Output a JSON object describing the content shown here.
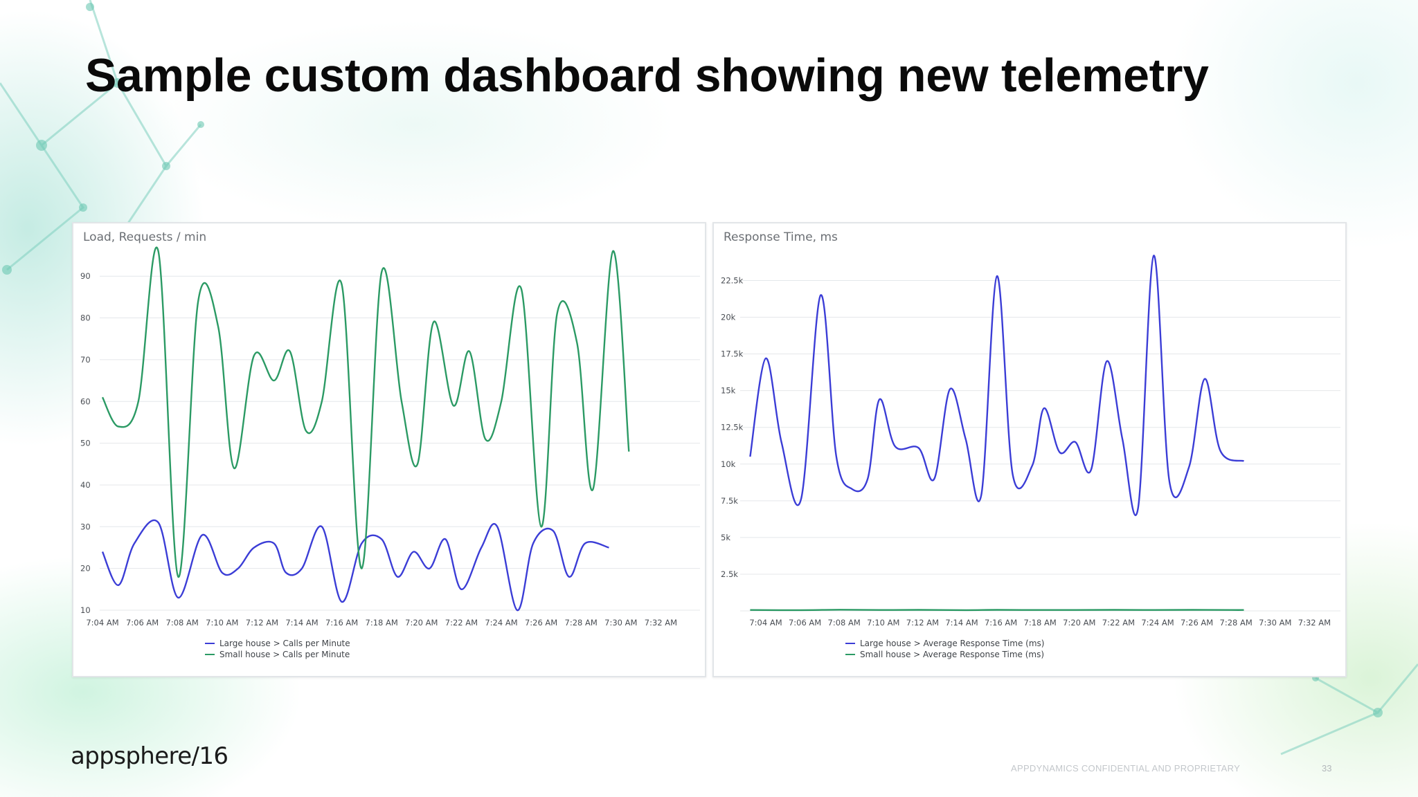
{
  "slide": {
    "title": "Sample custom dashboard showing new telemetry",
    "logo": "appsphere/16",
    "footer": "APPDYNAMICS CONFIDENTIAL AND PROPRIETARY",
    "page_number": "33"
  },
  "chart_data": [
    {
      "type": "line",
      "title": "Load, Requests / min",
      "x": [
        "7:04 AM",
        "7:06 AM",
        "7:08 AM",
        "7:10 AM",
        "7:12 AM",
        "7:14 AM",
        "7:16 AM",
        "7:18 AM",
        "7:20 AM",
        "7:22 AM",
        "7:24 AM",
        "7:26 AM",
        "7:28 AM",
        "7:30 AM",
        "7:32 AM"
      ],
      "y_ticks": [
        "10",
        "20",
        "30",
        "40",
        "50",
        "60",
        "70",
        "80",
        "90"
      ],
      "ylim": [
        10,
        96
      ],
      "grid": true,
      "legend_position": "bottom",
      "series": [
        {
          "name": "Large house > Calls per Minute",
          "color": "#3b3dd6",
          "points": [
            [
              0,
              24
            ],
            [
              0.4,
              16
            ],
            [
              0.8,
              26
            ],
            [
              1.4,
              31
            ],
            [
              1.9,
              13
            ],
            [
              2.5,
              28
            ],
            [
              3,
              19
            ],
            [
              3.4,
              20
            ],
            [
              3.8,
              25
            ],
            [
              4.3,
              26
            ],
            [
              4.6,
              19
            ],
            [
              5,
              20
            ],
            [
              5.5,
              30
            ],
            [
              6,
              12
            ],
            [
              6.5,
              26
            ],
            [
              7,
              27
            ],
            [
              7.4,
              18
            ],
            [
              7.8,
              24
            ],
            [
              8.2,
              20
            ],
            [
              8.6,
              27
            ],
            [
              9,
              15
            ],
            [
              9.5,
              25
            ],
            [
              9.9,
              30
            ],
            [
              10.4,
              10
            ],
            [
              10.8,
              26
            ],
            [
              11.3,
              29
            ],
            [
              11.7,
              18
            ],
            [
              12.1,
              26
            ],
            [
              12.7,
              25
            ]
          ]
        },
        {
          "name": "Small house > Calls per Minute",
          "color": "#2b9a64",
          "points": [
            [
              0,
              61
            ],
            [
              0.4,
              54
            ],
            [
              0.9,
              60
            ],
            [
              1.4,
              96
            ],
            [
              1.9,
              18
            ],
            [
              2.4,
              84
            ],
            [
              2.9,
              78
            ],
            [
              3.3,
              44
            ],
            [
              3.8,
              71
            ],
            [
              4.3,
              65
            ],
            [
              4.7,
              72
            ],
            [
              5.1,
              53
            ],
            [
              5.5,
              60
            ],
            [
              6,
              88
            ],
            [
              6.5,
              20
            ],
            [
              7,
              91
            ],
            [
              7.5,
              60
            ],
            [
              7.9,
              45
            ],
            [
              8.3,
              79
            ],
            [
              8.8,
              59
            ],
            [
              9.2,
              72
            ],
            [
              9.6,
              51
            ],
            [
              10,
              60
            ],
            [
              10.5,
              87
            ],
            [
              11,
              30
            ],
            [
              11.4,
              81
            ],
            [
              11.9,
              74
            ],
            [
              12.3,
              39
            ],
            [
              12.8,
              96
            ],
            [
              13.2,
              48
            ]
          ]
        }
      ]
    },
    {
      "type": "line",
      "title": "Response Time, ms",
      "x": [
        "7:04 AM",
        "7:06 AM",
        "7:08 AM",
        "7:10 AM",
        "7:12 AM",
        "7:14 AM",
        "7:16 AM",
        "7:18 AM",
        "7:20 AM",
        "7:22 AM",
        "7:24 AM",
        "7:26 AM",
        "7:28 AM",
        "7:30 AM",
        "7:32 AM"
      ],
      "y_ticks": [
        "2.5k",
        "5k",
        "7.5k",
        "10k",
        "12.5k",
        "15k",
        "17.5k",
        "20k",
        "22.5k"
      ],
      "ylim": [
        0,
        24500
      ],
      "grid": true,
      "legend_position": "bottom",
      "series": [
        {
          "name": "Large house > Average Response Time (ms)",
          "color": "#3b3dd6",
          "points": [
            [
              -0.4,
              10500
            ],
            [
              0,
              17200
            ],
            [
              0.4,
              11500
            ],
            [
              0.9,
              7600
            ],
            [
              1.4,
              21500
            ],
            [
              1.8,
              10500
            ],
            [
              2.2,
              8300
            ],
            [
              2.6,
              9000
            ],
            [
              2.9,
              14400
            ],
            [
              3.3,
              11200
            ],
            [
              3.9,
              11100
            ],
            [
              4.3,
              9000
            ],
            [
              4.7,
              15100
            ],
            [
              5.1,
              11700
            ],
            [
              5.5,
              7900
            ],
            [
              5.9,
              22800
            ],
            [
              6.3,
              9300
            ],
            [
              6.8,
              9900
            ],
            [
              7.1,
              13800
            ],
            [
              7.5,
              10800
            ],
            [
              7.9,
              11500
            ],
            [
              8.3,
              9600
            ],
            [
              8.7,
              17000
            ],
            [
              9.1,
              11700
            ],
            [
              9.5,
              7000
            ],
            [
              9.9,
              24200
            ],
            [
              10.3,
              8800
            ],
            [
              10.8,
              9800
            ],
            [
              11.2,
              15800
            ],
            [
              11.6,
              10900
            ],
            [
              12.2,
              10200
            ]
          ]
        },
        {
          "name": "Small house > Average Response Time (ms)",
          "color": "#2b9a64",
          "points": [
            [
              -0.4,
              60
            ],
            [
              0.9,
              50
            ],
            [
              1.9,
              80
            ],
            [
              2.9,
              60
            ],
            [
              3.9,
              70
            ],
            [
              5.1,
              50
            ],
            [
              5.9,
              70
            ],
            [
              6.9,
              60
            ],
            [
              7.9,
              60
            ],
            [
              8.9,
              70
            ],
            [
              9.9,
              60
            ],
            [
              10.9,
              70
            ],
            [
              11.9,
              60
            ],
            [
              12.2,
              60
            ]
          ]
        }
      ]
    }
  ]
}
